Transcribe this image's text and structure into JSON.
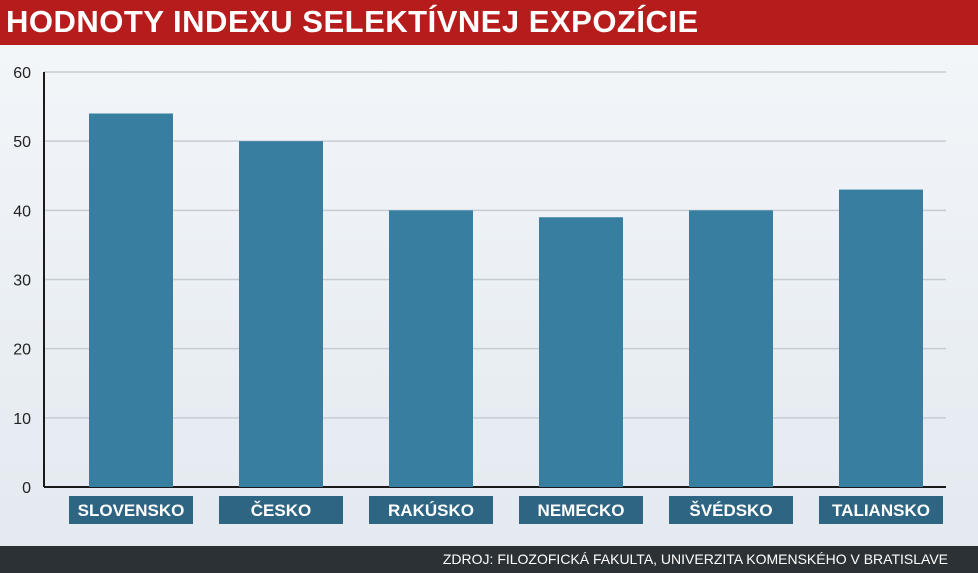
{
  "header": {
    "title": "HODNOTY INDEXU SELEKTÍVNEJ EXPOZÍCIE"
  },
  "footer": {
    "source": "ZDROJ: FILOZOFICKÁ FAKULTA, UNIVERZITA KOMENSKÉHO V BRATISLAVE"
  },
  "colors": {
    "bar": "#377ea1",
    "label_bg": "#2e6583",
    "title_bg": "#b71c1c",
    "grid": "#c5ccd3"
  },
  "chart_data": {
    "type": "bar",
    "categories": [
      "SLOVENSKO",
      "ČESKO",
      "RAKÚSKO",
      "NEMECKO",
      "ŠVÉDSKO",
      "TALIANSKO"
    ],
    "values": [
      54,
      50,
      40,
      39,
      40,
      43
    ],
    "title": "HODNOTY INDEXU SELEKTÍVNEJ EXPOZÍCIE",
    "xlabel": "",
    "ylabel": "",
    "ylim": [
      0,
      60
    ],
    "yticks": [
      "0",
      "10",
      "20",
      "30",
      "40",
      "50",
      "60"
    ],
    "grid": true,
    "legend": "none"
  }
}
